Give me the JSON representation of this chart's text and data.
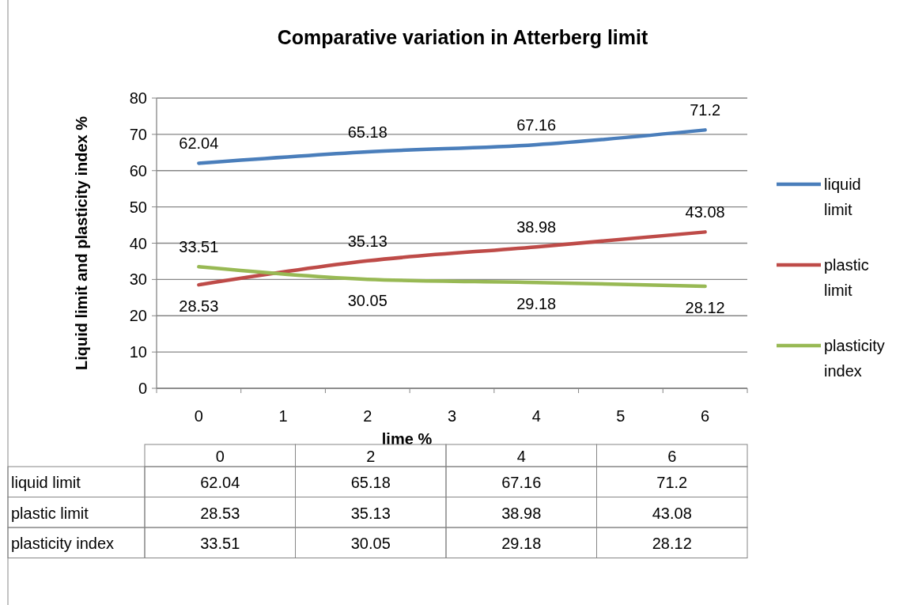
{
  "chart_data": {
    "type": "line",
    "title": "Comparative variation in Atterberg limit",
    "xlabel": "lime %",
    "ylabel": "Liquid limit and plasticity index  %",
    "x": [
      0,
      2,
      4,
      6
    ],
    "xlim": [
      -0.5,
      6.5
    ],
    "xticks": [
      {
        "value": 0,
        "label": "0"
      },
      {
        "value": 1,
        "label": "1"
      },
      {
        "value": 2,
        "label": "2"
      },
      {
        "value": 3,
        "label": "3"
      },
      {
        "value": 4,
        "label": "4"
      },
      {
        "value": 5,
        "label": "5"
      },
      {
        "value": 6,
        "label": "6"
      }
    ],
    "ylim": [
      0,
      80
    ],
    "yticks": [
      0,
      10,
      20,
      30,
      40,
      50,
      60,
      70,
      80
    ],
    "grid": "y",
    "legend": "right",
    "data_labels": true,
    "marker": "none",
    "annotations": [
      "62.04",
      "65.18",
      "67.16",
      "71.2",
      "28.53",
      "35.13",
      "38.98",
      "43.08",
      "33.51",
      "30.05",
      "29.18",
      "28.12"
    ],
    "series": [
      {
        "name": "liquid limit",
        "color": "#4a7ebb",
        "values": [
          62.04,
          65.18,
          67.16,
          71.2
        ]
      },
      {
        "name": "plastic limit",
        "color": "#be4b48",
        "values": [
          28.53,
          35.13,
          38.98,
          43.08
        ]
      },
      {
        "name": "plasticity index",
        "color": "#98b954",
        "values": [
          33.51,
          30.05,
          29.18,
          28.12
        ]
      }
    ]
  }
}
